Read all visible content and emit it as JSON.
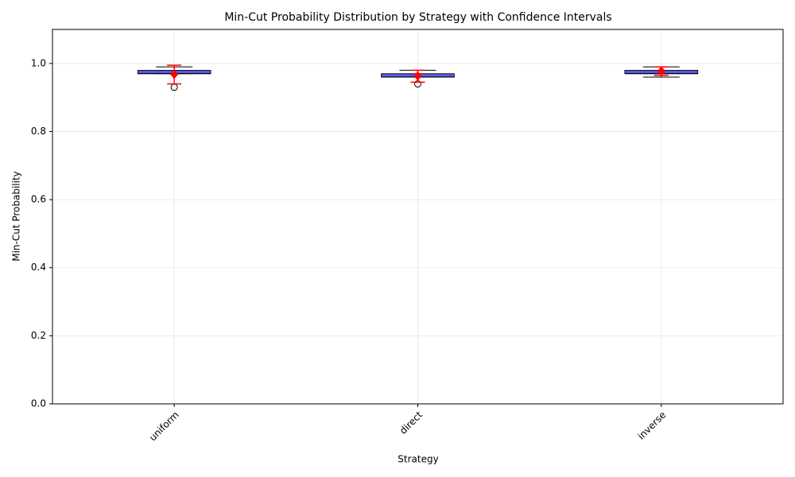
{
  "chart_data": {
    "type": "box",
    "title": "Min-Cut Probability Distribution by Strategy with Confidence Intervals",
    "xlabel": "Strategy",
    "ylabel": "Min-Cut Probability",
    "categories": [
      "uniform",
      "direct",
      "inverse"
    ],
    "boxes": [
      {
        "min": 0.97,
        "q1": 0.97,
        "median": 0.97,
        "q3": 0.98,
        "max": 0.99,
        "outliers": [
          0.93
        ]
      },
      {
        "min": 0.96,
        "q1": 0.96,
        "median": 0.96,
        "q3": 0.97,
        "max": 0.98,
        "outliers": [
          0.94
        ]
      },
      {
        "min": 0.96,
        "q1": 0.97,
        "median": 0.97,
        "q3": 0.98,
        "max": 0.99,
        "outliers": []
      }
    ],
    "means": [
      0.968,
      0.963,
      0.978
    ],
    "ci_low": [
      0.94,
      0.945,
      0.965
    ],
    "ci_high": [
      0.995,
      0.98,
      0.99
    ],
    "box_color": "#3b3bd6",
    "mean_color": "#ff0000",
    "ylim": [
      0,
      1.1
    ],
    "yticks": [
      {
        "value": 0,
        "label": "0.0"
      },
      0.2,
      0.4,
      0.6,
      0.8,
      {
        "value": 1,
        "label": "1.0"
      }
    ],
    "grid": true
  }
}
